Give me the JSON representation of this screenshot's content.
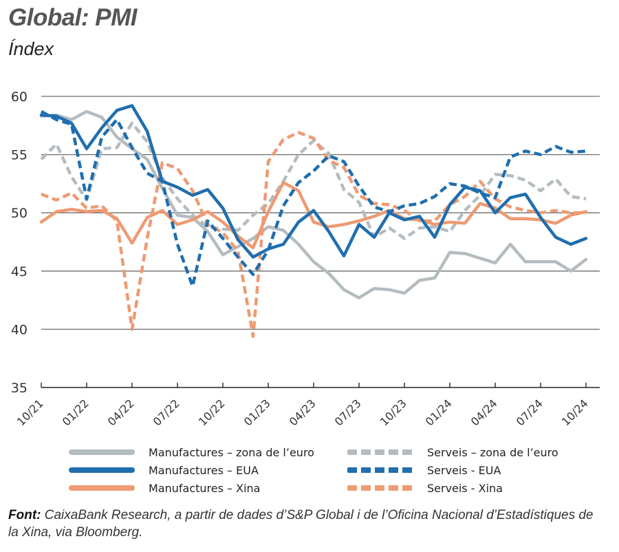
{
  "header": {
    "title": "Global: PMI",
    "subtitle": "Índex"
  },
  "source": {
    "label": "Font:",
    "text": " CaixaBank Research, a partir de dades d’S&P Global i de l’Oficina Nacional d’Estadístiques de la Xina, via Bloomberg."
  },
  "chart_data": {
    "type": "line",
    "title": "Global: PMI",
    "subtitle": "Índex",
    "xlabel": "",
    "ylabel": "Índex",
    "ylim": [
      35,
      60
    ],
    "yticks": [
      35,
      40,
      45,
      50,
      55,
      60
    ],
    "grid": true,
    "legend_position": "bottom",
    "x": [
      "10/21",
      "11/21",
      "12/21",
      "01/22",
      "02/22",
      "03/22",
      "04/22",
      "05/22",
      "06/22",
      "07/22",
      "08/22",
      "09/22",
      "10/22",
      "11/22",
      "12/22",
      "01/23",
      "02/23",
      "03/23",
      "04/23",
      "05/23",
      "06/23",
      "07/23",
      "08/23",
      "09/23",
      "10/23",
      "11/23",
      "12/23",
      "01/24",
      "02/24",
      "03/24",
      "04/24",
      "05/24",
      "06/24",
      "07/24",
      "08/24",
      "09/24",
      "10/24"
    ],
    "xtick_labels": [
      "10/21",
      "01/22",
      "04/22",
      "07/22",
      "10/22",
      "01/23",
      "04/23",
      "07/23",
      "10/23",
      "01/24",
      "04/24",
      "07/24",
      "10/24"
    ],
    "series": [
      {
        "name": "Manufactures – zona de l’euro",
        "color": "#B4BCC0",
        "style": "solid",
        "values": [
          58.3,
          58.4,
          58.0,
          58.7,
          58.2,
          56.5,
          55.5,
          54.6,
          52.1,
          49.8,
          49.6,
          48.4,
          46.4,
          47.1,
          47.8,
          48.8,
          48.5,
          47.3,
          45.8,
          44.8,
          43.4,
          42.7,
          43.5,
          43.4,
          43.1,
          44.2,
          44.4,
          46.6,
          46.5,
          46.1,
          45.7,
          47.3,
          45.8,
          45.8,
          45.8,
          45.0,
          46.0
        ]
      },
      {
        "name": "Manufactures – EUA",
        "color": "#1F6EAF",
        "style": "solid",
        "values": [
          58.4,
          58.3,
          57.7,
          55.5,
          57.3,
          58.8,
          59.2,
          57.0,
          52.7,
          52.2,
          51.5,
          52.0,
          50.4,
          47.7,
          46.2,
          46.9,
          47.3,
          49.2,
          50.2,
          48.4,
          46.3,
          49.0,
          47.9,
          50.0,
          49.4,
          49.7,
          47.9,
          50.7,
          52.2,
          51.9,
          50.0,
          51.3,
          51.6,
          49.6,
          47.9,
          47.3,
          47.8
        ]
      },
      {
        "name": "Manufactures – Xina",
        "color": "#EE9A73",
        "style": "solid",
        "values": [
          49.2,
          50.1,
          50.3,
          50.1,
          50.2,
          49.5,
          47.4,
          49.6,
          50.2,
          49.0,
          49.4,
          50.1,
          49.2,
          48.0,
          47.0,
          50.1,
          52.6,
          51.9,
          49.2,
          48.8,
          49.0,
          49.3,
          49.7,
          50.2,
          49.5,
          49.4,
          49.0,
          49.2,
          49.1,
          50.8,
          50.4,
          49.5,
          49.5,
          49.4,
          49.1,
          49.8,
          50.1
        ]
      },
      {
        "name": "Serveis – zona de l’euro",
        "color": "#B4BCC0",
        "style": "dashed",
        "values": [
          54.6,
          55.9,
          53.1,
          51.1,
          55.5,
          55.6,
          57.7,
          56.1,
          53.0,
          51.2,
          49.8,
          48.8,
          48.6,
          48.5,
          49.8,
          50.8,
          52.7,
          55.0,
          56.2,
          55.1,
          52.0,
          50.9,
          47.9,
          48.7,
          47.8,
          48.7,
          48.8,
          48.4,
          50.2,
          51.5,
          53.3,
          53.2,
          52.8,
          51.9,
          52.9,
          51.4,
          51.2
        ]
      },
      {
        "name": "Serveis - EUA",
        "color": "#1F6EAF",
        "style": "dashed",
        "values": [
          58.7,
          58.0,
          57.6,
          51.2,
          56.5,
          58.0,
          55.6,
          53.4,
          52.7,
          47.3,
          43.7,
          49.3,
          47.8,
          46.2,
          44.7,
          46.8,
          50.6,
          52.6,
          53.6,
          54.9,
          54.4,
          52.3,
          50.5,
          50.1,
          50.6,
          50.8,
          51.4,
          52.5,
          52.3,
          51.7,
          51.3,
          54.8,
          55.3,
          55.0,
          55.7,
          55.2,
          55.3
        ]
      },
      {
        "name": "Serveis - Xina",
        "color": "#EE9A73",
        "style": "dashed",
        "values": [
          51.6,
          51.1,
          51.7,
          50.4,
          50.6,
          49.3,
          40.0,
          47.8,
          54.3,
          53.8,
          51.9,
          49.0,
          48.3,
          46.7,
          39.4,
          54.4,
          56.3,
          56.9,
          56.4,
          54.5,
          53.9,
          51.5,
          50.8,
          50.7,
          50.2,
          49.3,
          49.3,
          50.7,
          51.4,
          52.7,
          51.2,
          50.5,
          50.2,
          50.0,
          50.2,
          50.0,
          50.0
        ]
      }
    ]
  }
}
